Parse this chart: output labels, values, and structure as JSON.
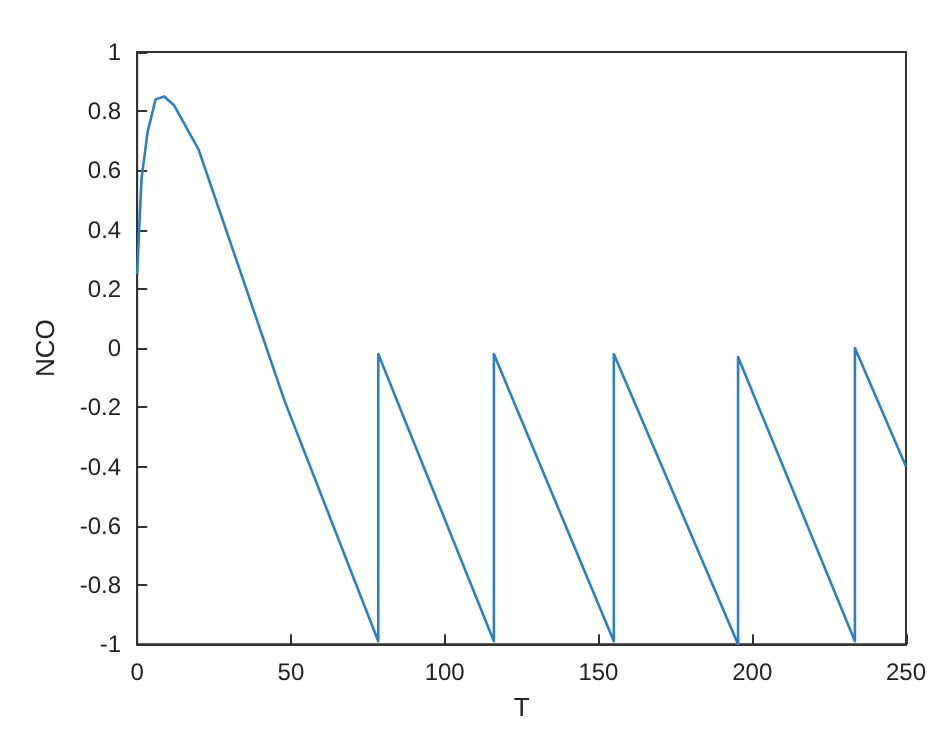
{
  "chart_data": {
    "type": "line",
    "xlabel": "T",
    "ylabel": "NCO",
    "xlim": [
      0,
      250
    ],
    "xticks": [
      0,
      50,
      100,
      150,
      200,
      250
    ],
    "ylim": [
      -1,
      1
    ],
    "yticks": [
      -1,
      -0.8,
      -0.6,
      -0.4,
      -0.2,
      0,
      0.2,
      0.4,
      0.6,
      0.8,
      1
    ],
    "grid": false,
    "marker": "none",
    "line_style": "solid",
    "series": [
      {
        "color": "#2f7fc1",
        "x": [
          0,
          1.4,
          3.4,
          6,
          8.8,
          12,
          20,
          48,
          78.4,
          78.4,
          116,
          116,
          155,
          155,
          195.4,
          195.4,
          233.4,
          233.4,
          250
        ],
        "values": [
          0.25,
          0.57,
          0.73,
          0.84,
          0.85,
          0.82,
          0.67,
          -0.18,
          -0.99,
          -0.02,
          -0.99,
          -0.02,
          -0.99,
          -0.02,
          -1,
          -0.03,
          -0.99,
          0,
          -0.4
        ]
      }
    ]
  }
}
